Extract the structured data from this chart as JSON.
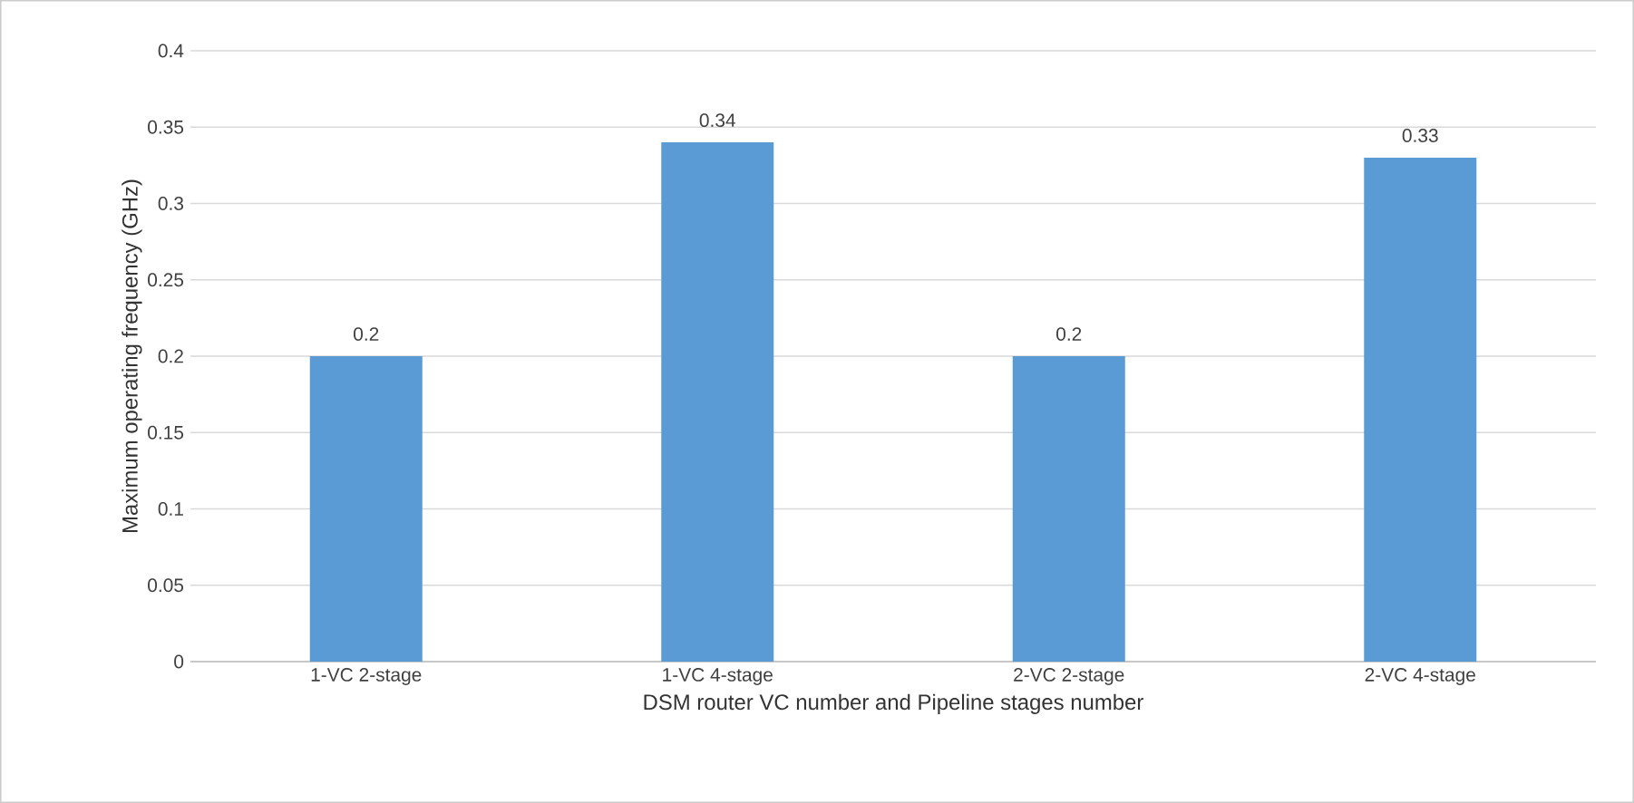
{
  "chart_data": {
    "type": "bar",
    "xlabel": "DSM router VC number and Pipeline stages number",
    "ylabel": "Maximum operating frequency (GHz)",
    "categories": [
      "1-VC 2-stage",
      "1-VC 4-stage",
      "2-VC 2-stage",
      "2-VC 4-stage"
    ],
    "values": [
      0.2,
      0.34,
      0.2,
      0.33
    ],
    "color": "#5b9bd5",
    "ylim": [
      0,
      0.4
    ],
    "yticks": [
      0,
      0.05,
      0.1,
      0.15,
      0.2,
      0.25,
      0.3,
      0.35,
      0.4
    ],
    "grid": "y",
    "data_labels": true
  }
}
